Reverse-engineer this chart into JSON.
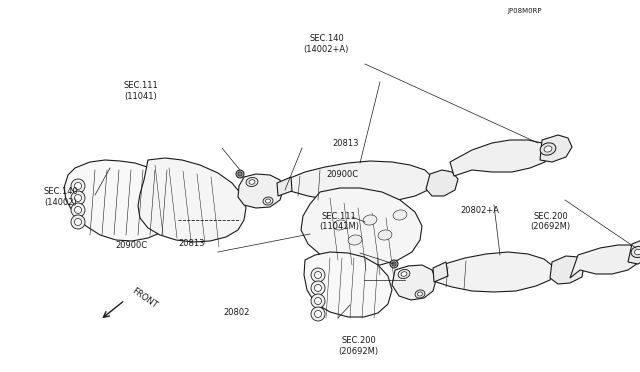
{
  "bg_color": "#ffffff",
  "line_color": "#1a1a1a",
  "fig_width": 6.4,
  "fig_height": 3.72,
  "labels": {
    "sec200_top": [
      "SEC.200\n(20692M)",
      0.56,
      0.93,
      6
    ],
    "20802": [
      "20802",
      0.37,
      0.84,
      6
    ],
    "20900C_left": [
      "20900C",
      0.205,
      0.66,
      6
    ],
    "20813_left": [
      "20813",
      0.3,
      0.655,
      6
    ],
    "sec140_left": [
      "SEC.140\n(14002)",
      0.095,
      0.53,
      6
    ],
    "sec111_top_right": [
      "SEC.111\n(11041M)",
      0.53,
      0.595,
      6
    ],
    "sec111_bottom_left": [
      "SEC.111\n(11041)",
      0.22,
      0.245,
      6
    ],
    "sec200_right": [
      "SEC.200\n(20692M)",
      0.86,
      0.595,
      6
    ],
    "20802A": [
      "20802+A",
      0.75,
      0.565,
      6
    ],
    "20900C_right": [
      "20900C",
      0.535,
      0.47,
      6
    ],
    "20813_right": [
      "20813",
      0.54,
      0.385,
      6
    ],
    "sec140_right": [
      "SEC.140\n(14002+A)",
      0.51,
      0.118,
      6
    ],
    "part_num": [
      "JP08M0RP",
      0.82,
      0.03,
      5
    ]
  }
}
